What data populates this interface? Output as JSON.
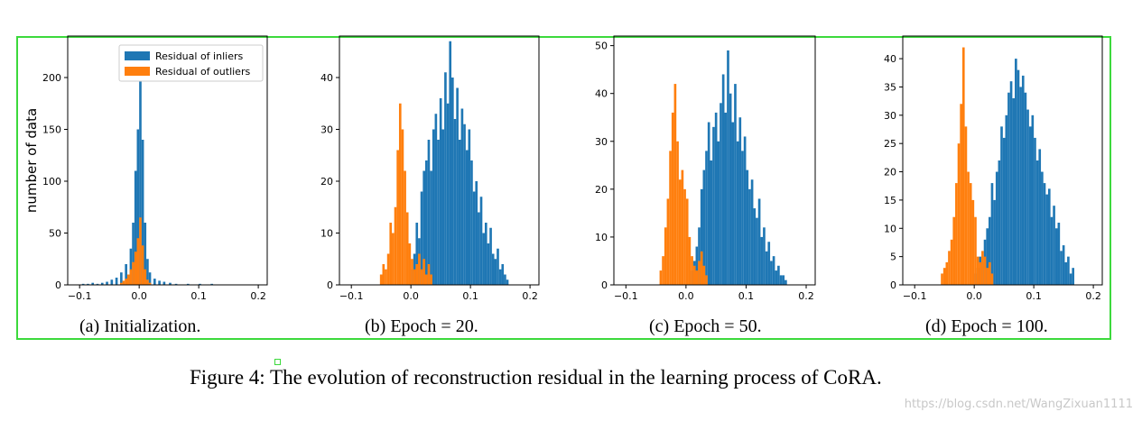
{
  "chart_data": [
    {
      "type": "bar",
      "panel": "a",
      "caption": "(a) Initialization.",
      "ylabel": "number of data",
      "xlim": [
        -0.12,
        0.215
      ],
      "ylim": [
        0,
        240
      ],
      "xticks": [
        -0.1,
        0.0,
        0.1,
        0.2
      ],
      "yticks": [
        0,
        50,
        100,
        150,
        200
      ],
      "legend": {
        "placement": "top-right",
        "entries": [
          "Residual of inliers",
          "Residual of outliers"
        ]
      },
      "bin_width": 0.004,
      "series": [
        {
          "name": "Residual of inliers",
          "color": "#1f77b4",
          "x": [
            -0.096,
            -0.088,
            -0.08,
            -0.072,
            -0.064,
            -0.056,
            -0.048,
            -0.04,
            -0.032,
            -0.024,
            -0.016,
            -0.012,
            -0.008,
            -0.004,
            0.0,
            0.004,
            0.008,
            0.012,
            0.016,
            0.024,
            0.032,
            0.04,
            0.05,
            0.06,
            0.08,
            0.1,
            0.12
          ],
          "values": [
            1,
            1,
            2,
            1,
            2,
            3,
            5,
            7,
            12,
            20,
            35,
            60,
            110,
            150,
            213,
            140,
            60,
            25,
            12,
            6,
            4,
            3,
            2,
            1,
            1,
            1,
            1
          ]
        },
        {
          "name": "Residual of outliers",
          "color": "#ff7f0e",
          "x": [
            -0.032,
            -0.028,
            -0.024,
            -0.02,
            -0.016,
            -0.012,
            -0.008,
            -0.004,
            0.0,
            0.004,
            0.008,
            0.012,
            0.016
          ],
          "values": [
            2,
            4,
            6,
            10,
            15,
            22,
            32,
            45,
            65,
            38,
            15,
            5,
            2
          ]
        }
      ]
    },
    {
      "type": "bar",
      "panel": "b",
      "caption": "(b) Epoch = 20.",
      "xlim": [
        -0.12,
        0.215
      ],
      "ylim": [
        0,
        48
      ],
      "xticks": [
        -0.1,
        0.0,
        0.1,
        0.2
      ],
      "yticks": [
        0,
        10,
        20,
        30,
        40
      ],
      "bin_width": 0.004,
      "series": [
        {
          "name": "Residual of inliers",
          "color": "#1f77b4",
          "x": [
            0.0,
            0.004,
            0.008,
            0.012,
            0.016,
            0.02,
            0.024,
            0.028,
            0.032,
            0.036,
            0.04,
            0.044,
            0.048,
            0.052,
            0.056,
            0.06,
            0.064,
            0.068,
            0.072,
            0.076,
            0.08,
            0.084,
            0.088,
            0.092,
            0.096,
            0.1,
            0.104,
            0.108,
            0.112,
            0.116,
            0.12,
            0.124,
            0.128,
            0.132,
            0.136,
            0.14,
            0.144,
            0.148,
            0.152,
            0.156,
            0.16
          ],
          "values": [
            3,
            6,
            12,
            9,
            18,
            22,
            24,
            28,
            22,
            30,
            33,
            28,
            36,
            30,
            41,
            35,
            47,
            40,
            32,
            38,
            28,
            34,
            31,
            26,
            30,
            24,
            18,
            20,
            14,
            17,
            10,
            12,
            8,
            11,
            6,
            5,
            7,
            3,
            4,
            2,
            1
          ]
        },
        {
          "name": "Residual of outliers",
          "color": "#ff7f0e",
          "x": [
            -0.052,
            -0.048,
            -0.044,
            -0.04,
            -0.036,
            -0.032,
            -0.028,
            -0.024,
            -0.02,
            -0.016,
            -0.012,
            -0.008,
            -0.004,
            0.0,
            0.004,
            0.008,
            0.012,
            0.016,
            0.02,
            0.024,
            0.028,
            0.032
          ],
          "values": [
            2,
            4,
            3,
            6,
            12,
            10,
            15,
            26,
            35,
            30,
            22,
            14,
            8,
            5,
            3,
            4,
            6,
            3,
            5,
            2,
            4,
            2
          ]
        }
      ]
    },
    {
      "type": "bar",
      "panel": "c",
      "caption": "(c) Epoch = 50.",
      "xlim": [
        -0.12,
        0.215
      ],
      "ylim": [
        0,
        52
      ],
      "xticks": [
        -0.1,
        0.0,
        0.1,
        0.2
      ],
      "yticks": [
        0,
        10,
        20,
        30,
        40,
        50
      ],
      "bin_width": 0.004,
      "series": [
        {
          "name": "Residual of inliers",
          "color": "#1f77b4",
          "x": [
            0.008,
            0.012,
            0.016,
            0.02,
            0.024,
            0.028,
            0.032,
            0.036,
            0.04,
            0.044,
            0.048,
            0.052,
            0.056,
            0.06,
            0.064,
            0.068,
            0.072,
            0.076,
            0.08,
            0.084,
            0.088,
            0.092,
            0.096,
            0.1,
            0.104,
            0.108,
            0.112,
            0.116,
            0.12,
            0.124,
            0.128,
            0.132,
            0.136,
            0.14,
            0.144,
            0.148,
            0.152,
            0.156,
            0.16,
            0.164
          ],
          "values": [
            3,
            5,
            8,
            12,
            20,
            24,
            28,
            34,
            26,
            33,
            36,
            30,
            38,
            44,
            36,
            49,
            40,
            34,
            42,
            30,
            35,
            28,
            31,
            24,
            20,
            22,
            16,
            14,
            18,
            10,
            12,
            7,
            9,
            5,
            6,
            3,
            4,
            2,
            2,
            1
          ]
        },
        {
          "name": "Residual of outliers",
          "color": "#ff7f0e",
          "x": [
            -0.044,
            -0.04,
            -0.036,
            -0.032,
            -0.028,
            -0.024,
            -0.02,
            -0.016,
            -0.012,
            -0.008,
            -0.004,
            0.0,
            0.004,
            0.008,
            0.012,
            0.016,
            0.02,
            0.024,
            0.028,
            0.032
          ],
          "values": [
            3,
            6,
            12,
            18,
            28,
            36,
            42,
            30,
            22,
            24,
            20,
            18,
            10,
            6,
            4,
            3,
            5,
            7,
            4,
            2
          ]
        }
      ]
    },
    {
      "type": "bar",
      "panel": "d",
      "caption": "(d) Epoch = 100.",
      "xlim": [
        -0.12,
        0.215
      ],
      "ylim": [
        0,
        44
      ],
      "xticks": [
        -0.1,
        0.0,
        0.1,
        0.2
      ],
      "yticks": [
        0,
        5,
        10,
        15,
        20,
        25,
        30,
        35,
        40
      ],
      "bin_width": 0.004,
      "series": [
        {
          "name": "Residual of inliers",
          "color": "#1f77b4",
          "x": [
            0.0,
            0.004,
            0.008,
            0.012,
            0.016,
            0.02,
            0.024,
            0.028,
            0.032,
            0.036,
            0.04,
            0.044,
            0.048,
            0.052,
            0.056,
            0.06,
            0.064,
            0.068,
            0.072,
            0.076,
            0.08,
            0.084,
            0.088,
            0.092,
            0.096,
            0.1,
            0.104,
            0.108,
            0.112,
            0.116,
            0.12,
            0.124,
            0.128,
            0.132,
            0.136,
            0.14,
            0.144,
            0.148,
            0.152,
            0.156,
            0.16,
            0.164
          ],
          "values": [
            2,
            3,
            5,
            4,
            8,
            10,
            12,
            18,
            15,
            20,
            22,
            28,
            26,
            30,
            34,
            36,
            33,
            40,
            38,
            35,
            37,
            34,
            31,
            28,
            30,
            26,
            22,
            24,
            20,
            18,
            16,
            17,
            12,
            14,
            10,
            11,
            6,
            7,
            4,
            5,
            2,
            3
          ]
        },
        {
          "name": "Residual of outliers",
          "color": "#ff7f0e",
          "x": [
            -0.056,
            -0.052,
            -0.048,
            -0.044,
            -0.04,
            -0.036,
            -0.032,
            -0.028,
            -0.024,
            -0.02,
            -0.016,
            -0.012,
            -0.008,
            -0.004,
            0.0,
            0.004,
            0.008,
            0.012,
            0.016,
            0.02,
            0.024,
            0.028
          ],
          "values": [
            2,
            3,
            4,
            6,
            8,
            12,
            18,
            25,
            32,
            42,
            28,
            20,
            18,
            15,
            12,
            5,
            4,
            6,
            5,
            3,
            4,
            2
          ]
        }
      ]
    }
  ],
  "figure_caption": "Figure 4: The evolution of reconstruction residual in the learning process of CoRA.",
  "watermark": "https://blog.csdn.net/WangZixuan1111"
}
